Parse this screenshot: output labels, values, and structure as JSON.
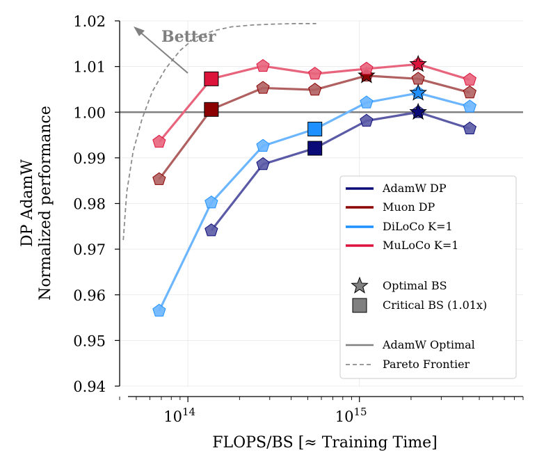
{
  "chart_data": {
    "type": "line",
    "xscale": "log",
    "xlabel": "FLOPS/BS [≈ Training Time]",
    "ylabel_lines": [
      "DP AdamW",
      "Normalized performance"
    ],
    "xlim": [
      40000000000000.0,
      9000000000000000.0
    ],
    "ylim": [
      0.94,
      1.02
    ],
    "x_ticks": [
      {
        "value": 100000000000000.0,
        "base": "10",
        "exp": "14"
      },
      {
        "value": 1000000000000000.0,
        "base": "10",
        "exp": "15"
      }
    ],
    "y_ticks": [
      {
        "value": 0.94,
        "label": "0.94"
      },
      {
        "value": 0.95,
        "label": "0.95"
      },
      {
        "value": 0.96,
        "label": "0.96"
      },
      {
        "value": 0.97,
        "label": "0.97"
      },
      {
        "value": 0.98,
        "label": "0.98"
      },
      {
        "value": 0.99,
        "label": "0.99"
      },
      {
        "value": 1.0,
        "label": "1.00"
      },
      {
        "value": 1.01,
        "label": "1.01"
      },
      {
        "value": 1.02,
        "label": "1.02"
      }
    ],
    "grid": true,
    "reference_line": {
      "name": "AdamW Optimal",
      "y": 1.0,
      "color": "#808080"
    },
    "series": [
      {
        "name": "AdamW DP",
        "color": "#0a0a78",
        "fill": "#5a5aa6",
        "x": [
          137000000000000.0,
          274000000000000.0,
          550000000000000.0,
          1100000000000000.0,
          2200000000000000.0,
          4400000000000000.0
        ],
        "y": [
          0.9741,
          0.9886,
          0.9921,
          0.9981,
          1.0,
          0.9964
        ],
        "optimal": {
          "x": 2200000000000000.0,
          "y": 1.0
        },
        "critical": {
          "x": 550000000000000.0,
          "y": 0.9921
        }
      },
      {
        "name": "Muon DP",
        "color": "#8b0000",
        "fill": "#b06060",
        "x": [
          68000000000000.0,
          137000000000000.0,
          274000000000000.0,
          550000000000000.0,
          1100000000000000.0,
          2200000000000000.0,
          4400000000000000.0
        ],
        "y": [
          0.9853,
          1.0006,
          1.0053,
          1.0049,
          1.008,
          1.0073,
          1.0043
        ],
        "optimal": {
          "x": 1100000000000000.0,
          "y": 1.008
        },
        "critical": {
          "x": 137000000000000.0,
          "y": 1.0006
        }
      },
      {
        "name": "DiLoCo K=1",
        "color": "#1e90ff",
        "fill": "#6cb6ff",
        "x": [
          68000000000000.0,
          137000000000000.0,
          274000000000000.0,
          550000000000000.0,
          1100000000000000.0,
          2200000000000000.0,
          4400000000000000.0
        ],
        "y": [
          0.9565,
          0.9802,
          0.9926,
          0.9963,
          1.0021,
          1.0042,
          1.0012
        ],
        "optimal": {
          "x": 2200000000000000.0,
          "y": 1.0042
        },
        "critical": {
          "x": 550000000000000.0,
          "y": 0.9963
        }
      },
      {
        "name": "MuLoCo K=1",
        "color": "#dc143c",
        "fill": "#e8647c",
        "x": [
          68000000000000.0,
          137000000000000.0,
          274000000000000.0,
          550000000000000.0,
          1100000000000000.0,
          2200000000000000.0,
          4400000000000000.0
        ],
        "y": [
          0.9935,
          1.0073,
          1.0101,
          1.0084,
          1.0095,
          1.0105,
          1.0071
        ],
        "optimal": {
          "x": 2200000000000000.0,
          "y": 1.0105
        },
        "critical": {
          "x": 137000000000000.0,
          "y": 1.0073
        }
      }
    ],
    "pareto_frontier": {
      "name": "Pareto Frontier",
      "x": [
        42000000000000.0,
        44000000000000.0,
        48000000000000.0,
        54000000000000.0,
        62000000000000.0,
        74000000000000.0,
        90000000000000.0,
        110000000000000.0,
        140000000000000.0,
        180000000000000.0,
        240000000000000.0,
        320000000000000.0,
        420000000000000.0,
        560000000000000.0
      ],
      "y": [
        0.972,
        0.9825,
        0.9915,
        0.9985,
        1.0045,
        1.0095,
        1.0135,
        1.0163,
        1.0178,
        1.0187,
        1.0191,
        1.0193,
        1.0194,
        1.0194
      ]
    },
    "annotation": {
      "text": "Better",
      "arrow": "up-left"
    },
    "legend": {
      "position": "lower-right",
      "entries": [
        {
          "label": "AdamW DP"
        },
        {
          "label": "Muon DP"
        },
        {
          "label": "DiLoCo K=1"
        },
        {
          "label": "MuLoCo K=1"
        },
        {
          "label": "Optimal BS"
        },
        {
          "label": "Critical BS (1.01x)"
        },
        {
          "label": "AdamW Optimal"
        },
        {
          "label": "Pareto Frontier"
        }
      ]
    }
  }
}
